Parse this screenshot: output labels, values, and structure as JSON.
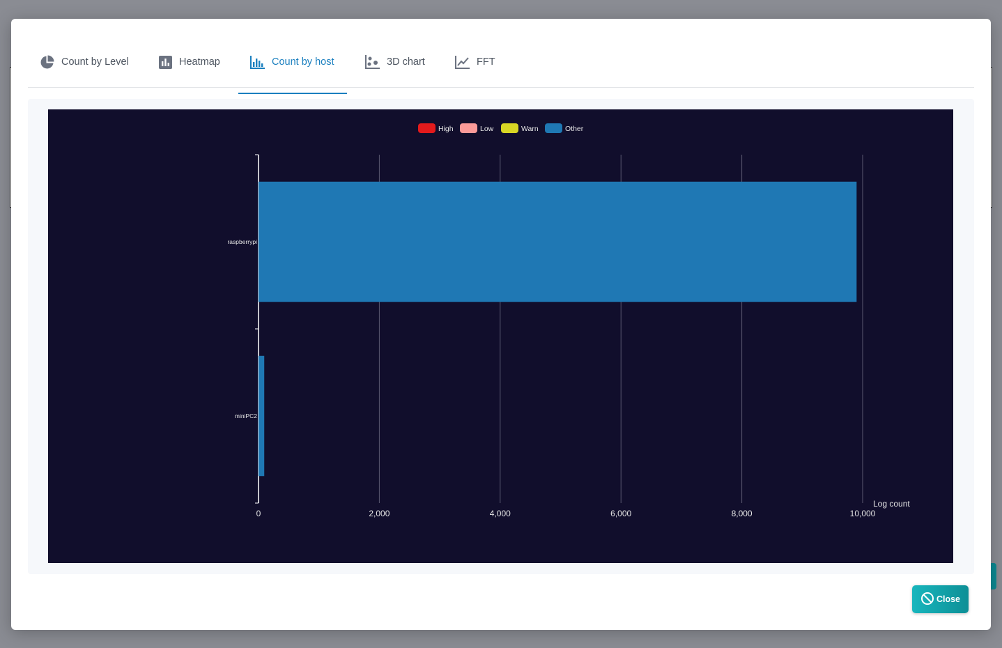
{
  "tabs": [
    {
      "label": "Count by Level",
      "icon": "pie-chart-icon",
      "active": false
    },
    {
      "label": "Heatmap",
      "icon": "bar-chart-icon",
      "active": false
    },
    {
      "label": "Count by host",
      "icon": "grouped-bar-icon",
      "active": true
    },
    {
      "label": "3D chart",
      "icon": "scatter-icon",
      "active": false
    },
    {
      "label": "FFT",
      "icon": "line-chart-icon",
      "active": false
    }
  ],
  "close_label": "Close",
  "colors": {
    "accent": "#1a7fbf",
    "chart_bg": "#110e2c",
    "close_button": "#14a6ad"
  },
  "chart_data": {
    "type": "bar",
    "orientation": "horizontal",
    "categories": [
      "raspberrypi",
      "miniPC2"
    ],
    "series": [
      {
        "name": "High",
        "color": "#e31a1c",
        "values": [
          0,
          0
        ]
      },
      {
        "name": "Low",
        "color": "#fb9a99",
        "values": [
          0,
          0
        ]
      },
      {
        "name": "Warn",
        "color": "#d8d624",
        "values": [
          0,
          0
        ]
      },
      {
        "name": "Other",
        "color": "#1f78b4",
        "values": [
          9900,
          95
        ]
      }
    ],
    "xlabel": "Log count",
    "xlim": [
      0,
      10000
    ],
    "xticks": [
      0,
      2000,
      4000,
      6000,
      8000,
      10000
    ],
    "xtick_labels": [
      "0",
      "2,000",
      "4,000",
      "6,000",
      "8,000",
      "10,000"
    ],
    "grid": true,
    "legend_position": "top"
  }
}
